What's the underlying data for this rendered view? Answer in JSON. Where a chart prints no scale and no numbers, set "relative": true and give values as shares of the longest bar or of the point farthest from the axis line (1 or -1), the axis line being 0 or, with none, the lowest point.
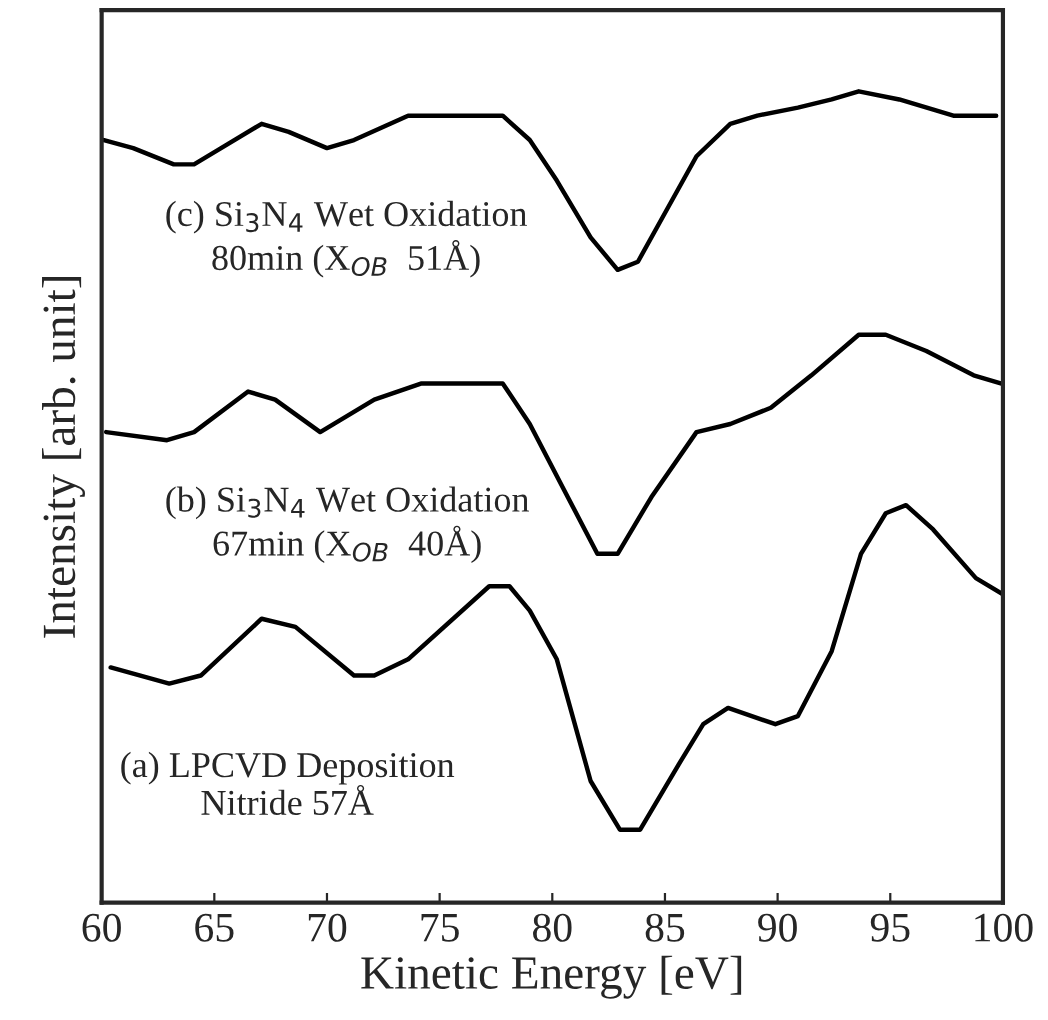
{
  "chart_data": {
    "type": "line",
    "relative": true,
    "xlabel": "Kinetic Energy [eV]",
    "ylabel": "Intensity [arb. unit]",
    "xlim": [
      60,
      100
    ],
    "xticks": [
      60,
      65,
      70,
      75,
      80,
      85,
      90,
      95,
      100
    ],
    "grid": false,
    "legend": false,
    "marker": "none",
    "line_style": "solid",
    "series": [
      {
        "color": "#000000",
        "x": [
          60.1,
          61.4,
          63.2,
          64.1,
          65.3,
          67.1,
          68.3,
          70.0,
          71.2,
          73.6,
          76.0,
          77.8,
          79.0,
          80.2,
          81.7,
          82.9,
          83.8,
          85.0,
          86.4,
          87.9,
          89.1,
          90.9,
          92.4,
          93.6,
          95.4,
          97.8,
          99.7
        ],
        "values": [
          0.94,
          0.93,
          0.91,
          0.91,
          0.93,
          0.96,
          0.95,
          0.93,
          0.94,
          0.97,
          0.97,
          0.97,
          0.94,
          0.89,
          0.82,
          0.78,
          0.79,
          0.85,
          0.92,
          0.96,
          0.97,
          0.98,
          0.99,
          1.0,
          0.99,
          0.97,
          0.97
        ]
      },
      {
        "color": "#000000",
        "x": [
          60.2,
          62.9,
          64.1,
          66.5,
          67.7,
          69.7,
          72.1,
          74.2,
          76.9,
          77.8,
          79.0,
          80.5,
          82.0,
          82.9,
          84.4,
          86.4,
          87.9,
          89.7,
          91.5,
          93.6,
          94.8,
          96.6,
          98.7,
          99.9
        ],
        "values": [
          0.58,
          0.57,
          0.58,
          0.63,
          0.62,
          0.58,
          0.62,
          0.64,
          0.64,
          0.64,
          0.59,
          0.51,
          0.43,
          0.43,
          0.5,
          0.58,
          0.59,
          0.61,
          0.65,
          0.7,
          0.7,
          0.68,
          0.65,
          0.64
        ]
      },
      {
        "color": "#000000",
        "x": [
          60.4,
          63.0,
          64.4,
          67.1,
          68.6,
          71.2,
          72.1,
          73.6,
          77.2,
          78.1,
          79.0,
          80.2,
          81.7,
          83.0,
          83.9,
          85.6,
          86.7,
          87.8,
          89.9,
          90.9,
          92.4,
          93.7,
          94.8,
          95.7,
          96.9,
          98.8,
          100.0
        ],
        "values": [
          0.29,
          0.27,
          0.28,
          0.35,
          0.34,
          0.28,
          0.28,
          0.3,
          0.39,
          0.39,
          0.36,
          0.3,
          0.15,
          0.09,
          0.09,
          0.17,
          0.22,
          0.24,
          0.22,
          0.23,
          0.31,
          0.43,
          0.48,
          0.49,
          0.46,
          0.4,
          0.38
        ]
      }
    ],
    "annotations": [
      "(c) Si$_{3}$N$_{4}$ Wet Oxidation\n80min (X$_{OB}$  51Å)",
      "(b) Si$_{3}$N$_{4}$ Wet Oxidation\n67min (X$_{OB}$  40Å)",
      "(a) LPCVD Deposition\nNitride 57Å"
    ]
  }
}
